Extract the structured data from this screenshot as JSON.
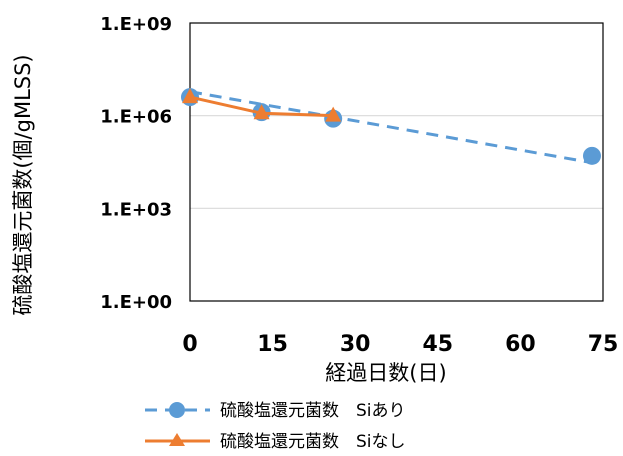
{
  "chart_data": {
    "type": "line",
    "xlabel": "経過日数(日)",
    "ylabel": "硫酸塩還元菌数(個/gMLSS)",
    "y_scale": "log",
    "ylim": [
      1,
      1000000000
    ],
    "xlim": [
      0,
      75
    ],
    "x_ticks": [
      "0",
      "15",
      "30",
      "45",
      "60",
      "75"
    ],
    "y_ticks": [
      "1.E+00",
      "1.E+03",
      "1.E+06",
      "1.E+09"
    ],
    "grid": "horizontal",
    "legend_position": "bottom",
    "series": [
      {
        "name": "硫酸塩還元菌数　Siあり",
        "color": "#5B9BD5",
        "line_style": "dashed",
        "marker": "circle",
        "trendline": {
          "x": [
            0,
            73
          ],
          "y": [
            6000000,
            30000
          ]
        },
        "points": [
          {
            "x": 0,
            "y": 4000000
          },
          {
            "x": 13,
            "y": 1300000
          },
          {
            "x": 26,
            "y": 800000
          },
          {
            "x": 73,
            "y": 50000
          }
        ]
      },
      {
        "name": "硫酸塩還元菌数　Siなし",
        "color": "#ED7D31",
        "line_style": "solid",
        "marker": "triangle",
        "points": [
          {
            "x": 0,
            "y": 4000000
          },
          {
            "x": 13,
            "y": 1200000
          },
          {
            "x": 26,
            "y": 1000000
          }
        ]
      }
    ]
  }
}
